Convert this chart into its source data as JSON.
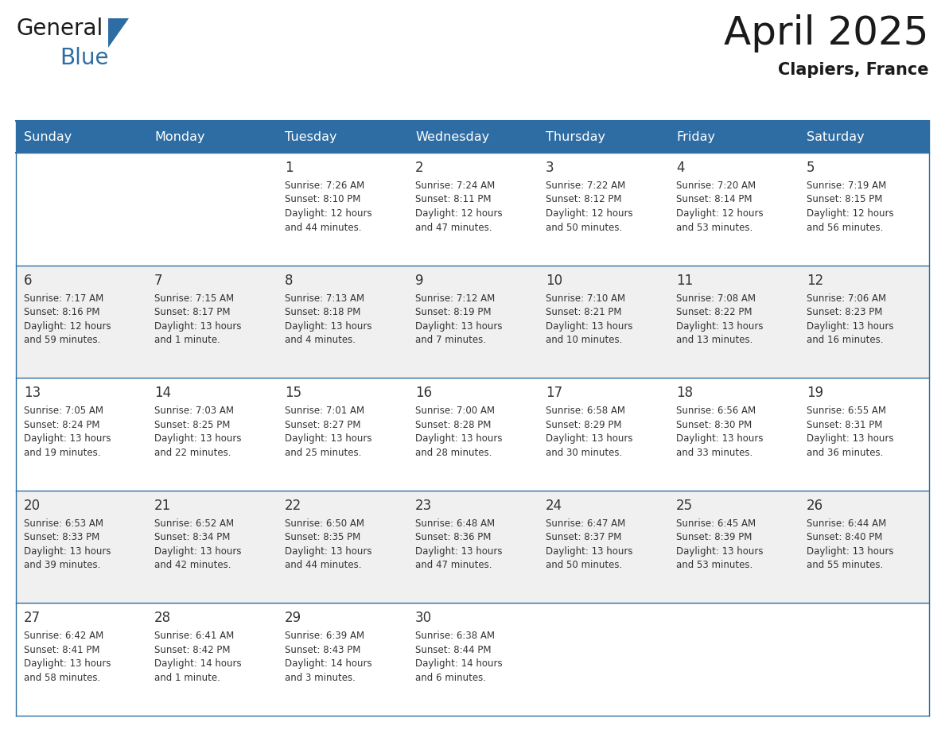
{
  "title": "April 2025",
  "subtitle": "Clapiers, France",
  "days_of_week": [
    "Sunday",
    "Monday",
    "Tuesday",
    "Wednesday",
    "Thursday",
    "Friday",
    "Saturday"
  ],
  "header_bg": "#2E6DA4",
  "header_text": "#FFFFFF",
  "row_bg": [
    "#FFFFFF",
    "#F0F0F0",
    "#FFFFFF",
    "#F0F0F0",
    "#FFFFFF"
  ],
  "row_line_color": "#2E6DA4",
  "day_num_color": "#333333",
  "text_color": "#333333",
  "calendar": [
    [
      {
        "day": "",
        "sunrise": "",
        "sunset": "",
        "daylight": ""
      },
      {
        "day": "",
        "sunrise": "",
        "sunset": "",
        "daylight": ""
      },
      {
        "day": "1",
        "sunrise": "7:26 AM",
        "sunset": "8:10 PM",
        "daylight": "12 hours and 44 minutes."
      },
      {
        "day": "2",
        "sunrise": "7:24 AM",
        "sunset": "8:11 PM",
        "daylight": "12 hours and 47 minutes."
      },
      {
        "day": "3",
        "sunrise": "7:22 AM",
        "sunset": "8:12 PM",
        "daylight": "12 hours and 50 minutes."
      },
      {
        "day": "4",
        "sunrise": "7:20 AM",
        "sunset": "8:14 PM",
        "daylight": "12 hours and 53 minutes."
      },
      {
        "day": "5",
        "sunrise": "7:19 AM",
        "sunset": "8:15 PM",
        "daylight": "12 hours and 56 minutes."
      }
    ],
    [
      {
        "day": "6",
        "sunrise": "7:17 AM",
        "sunset": "8:16 PM",
        "daylight": "12 hours and 59 minutes."
      },
      {
        "day": "7",
        "sunrise": "7:15 AM",
        "sunset": "8:17 PM",
        "daylight": "13 hours and 1 minute."
      },
      {
        "day": "8",
        "sunrise": "7:13 AM",
        "sunset": "8:18 PM",
        "daylight": "13 hours and 4 minutes."
      },
      {
        "day": "9",
        "sunrise": "7:12 AM",
        "sunset": "8:19 PM",
        "daylight": "13 hours and 7 minutes."
      },
      {
        "day": "10",
        "sunrise": "7:10 AM",
        "sunset": "8:21 PM",
        "daylight": "13 hours and 10 minutes."
      },
      {
        "day": "11",
        "sunrise": "7:08 AM",
        "sunset": "8:22 PM",
        "daylight": "13 hours and 13 minutes."
      },
      {
        "day": "12",
        "sunrise": "7:06 AM",
        "sunset": "8:23 PM",
        "daylight": "13 hours and 16 minutes."
      }
    ],
    [
      {
        "day": "13",
        "sunrise": "7:05 AM",
        "sunset": "8:24 PM",
        "daylight": "13 hours and 19 minutes."
      },
      {
        "day": "14",
        "sunrise": "7:03 AM",
        "sunset": "8:25 PM",
        "daylight": "13 hours and 22 minutes."
      },
      {
        "day": "15",
        "sunrise": "7:01 AM",
        "sunset": "8:27 PM",
        "daylight": "13 hours and 25 minutes."
      },
      {
        "day": "16",
        "sunrise": "7:00 AM",
        "sunset": "8:28 PM",
        "daylight": "13 hours and 28 minutes."
      },
      {
        "day": "17",
        "sunrise": "6:58 AM",
        "sunset": "8:29 PM",
        "daylight": "13 hours and 30 minutes."
      },
      {
        "day": "18",
        "sunrise": "6:56 AM",
        "sunset": "8:30 PM",
        "daylight": "13 hours and 33 minutes."
      },
      {
        "day": "19",
        "sunrise": "6:55 AM",
        "sunset": "8:31 PM",
        "daylight": "13 hours and 36 minutes."
      }
    ],
    [
      {
        "day": "20",
        "sunrise": "6:53 AM",
        "sunset": "8:33 PM",
        "daylight": "13 hours and 39 minutes."
      },
      {
        "day": "21",
        "sunrise": "6:52 AM",
        "sunset": "8:34 PM",
        "daylight": "13 hours and 42 minutes."
      },
      {
        "day": "22",
        "sunrise": "6:50 AM",
        "sunset": "8:35 PM",
        "daylight": "13 hours and 44 minutes."
      },
      {
        "day": "23",
        "sunrise": "6:48 AM",
        "sunset": "8:36 PM",
        "daylight": "13 hours and 47 minutes."
      },
      {
        "day": "24",
        "sunrise": "6:47 AM",
        "sunset": "8:37 PM",
        "daylight": "13 hours and 50 minutes."
      },
      {
        "day": "25",
        "sunrise": "6:45 AM",
        "sunset": "8:39 PM",
        "daylight": "13 hours and 53 minutes."
      },
      {
        "day": "26",
        "sunrise": "6:44 AM",
        "sunset": "8:40 PM",
        "daylight": "13 hours and 55 minutes."
      }
    ],
    [
      {
        "day": "27",
        "sunrise": "6:42 AM",
        "sunset": "8:41 PM",
        "daylight": "13 hours and 58 minutes."
      },
      {
        "day": "28",
        "sunrise": "6:41 AM",
        "sunset": "8:42 PM",
        "daylight": "14 hours and 1 minute."
      },
      {
        "day": "29",
        "sunrise": "6:39 AM",
        "sunset": "8:43 PM",
        "daylight": "14 hours and 3 minutes."
      },
      {
        "day": "30",
        "sunrise": "6:38 AM",
        "sunset": "8:44 PM",
        "daylight": "14 hours and 6 minutes."
      },
      {
        "day": "",
        "sunrise": "",
        "sunset": "",
        "daylight": ""
      },
      {
        "day": "",
        "sunrise": "",
        "sunset": "",
        "daylight": ""
      },
      {
        "day": "",
        "sunrise": "",
        "sunset": "",
        "daylight": ""
      }
    ]
  ],
  "logo_text1": "General",
  "logo_text2": "Blue",
  "logo_color1": "#1a1a1a",
  "logo_color2": "#2E6DA4",
  "title_fontsize": 36,
  "subtitle_fontsize": 15,
  "header_fontsize": 11.5,
  "day_num_fontsize": 12,
  "cell_fontsize": 8.5
}
